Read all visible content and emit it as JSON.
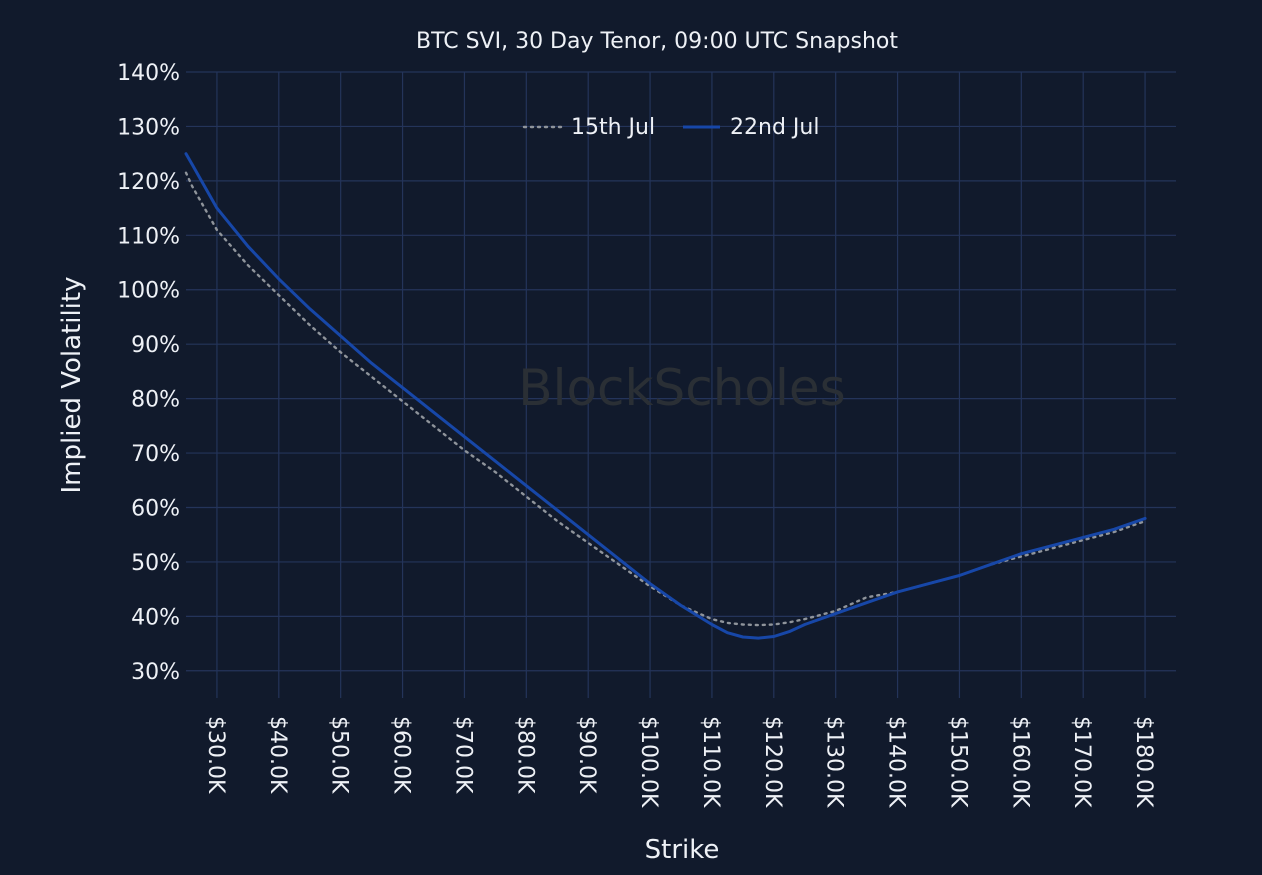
{
  "watermark": "BlockScholes",
  "colors": {
    "background": "#111a2c",
    "grid": "#24345a",
    "text": "#eef1f6",
    "series_15_jul": "#8f949b",
    "series_22_jul": "#1747a8"
  },
  "chart_data": {
    "type": "line",
    "title": "BTC SVI, 30 Day Tenor, 09:00 UTC Snapshot",
    "xlabel": "Strike",
    "ylabel": "Implied Volatility",
    "xlim": [
      25000,
      185000
    ],
    "ylim": [
      25,
      140
    ],
    "x_ticks": [
      30000,
      40000,
      50000,
      60000,
      70000,
      80000,
      90000,
      100000,
      110000,
      120000,
      130000,
      140000,
      150000,
      160000,
      170000,
      180000
    ],
    "x_tick_labels": [
      "$30.0K",
      "$40.0K",
      "$50.0K",
      "$60.0K",
      "$70.0K",
      "$80.0K",
      "$90.0K",
      "$100.0K",
      "$110.0K",
      "$120.0K",
      "$130.0K",
      "$140.0K",
      "$150.0K",
      "$160.0K",
      "$170.0K",
      "$180.0K"
    ],
    "y_ticks": [
      30,
      40,
      50,
      60,
      70,
      80,
      90,
      100,
      110,
      120,
      130,
      140
    ],
    "y_tick_labels": [
      "30%",
      "40%",
      "50%",
      "60%",
      "70%",
      "80%",
      "90%",
      "100%",
      "110%",
      "120%",
      "130%",
      "140%"
    ],
    "grid": true,
    "legend_position": "top-center",
    "series": [
      {
        "name": "15th Jul",
        "style": "dotted",
        "x": [
          24000,
          26000,
          30000,
          35000,
          40000,
          45000,
          50000,
          55000,
          60000,
          65000,
          70000,
          75000,
          80000,
          85000,
          90000,
          95000,
          100000,
          105000,
          110000,
          112500,
          115000,
          117500,
          120000,
          122500,
          125000,
          130000,
          135000,
          140000,
          145000,
          150000,
          155000,
          160000,
          165000,
          170000,
          175000,
          180000
        ],
        "y": [
          121.5,
          119,
          111,
          104.5,
          99,
          93.5,
          88.5,
          84,
          79.5,
          75,
          70.5,
          66.5,
          62,
          57.5,
          53.5,
          49.5,
          45.5,
          42,
          39.5,
          38.8,
          38.5,
          38.4,
          38.5,
          38.9,
          39.5,
          41,
          43.5,
          44.5,
          46,
          47.5,
          49.5,
          51,
          52.5,
          54,
          55.5,
          57.5
        ]
      },
      {
        "name": "22nd Jul",
        "style": "solid",
        "x": [
          24000,
          26000,
          30000,
          35000,
          40000,
          45000,
          50000,
          55000,
          60000,
          65000,
          70000,
          75000,
          80000,
          85000,
          90000,
          95000,
          100000,
          105000,
          110000,
          112500,
          115000,
          117500,
          120000,
          122500,
          125000,
          130000,
          135000,
          140000,
          145000,
          150000,
          155000,
          160000,
          165000,
          170000,
          175000,
          180000
        ],
        "y": [
          125,
          123,
          115,
          108,
          102,
          96.5,
          91.5,
          86.5,
          82,
          77.5,
          73,
          68.5,
          64,
          59.5,
          55,
          50.5,
          46,
          42,
          38.5,
          37,
          36.2,
          36,
          36.3,
          37.2,
          38.5,
          40.5,
          42.5,
          44.5,
          46,
          47.5,
          49.5,
          51.5,
          53,
          54.5,
          56,
          58
        ]
      }
    ]
  }
}
